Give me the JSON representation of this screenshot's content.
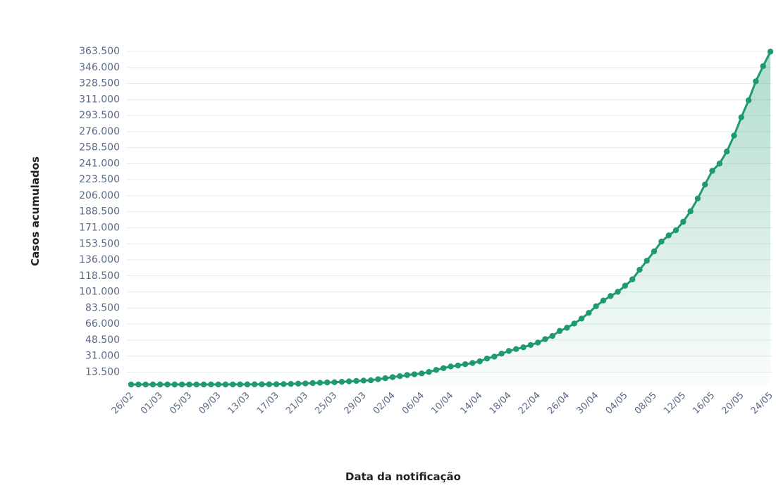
{
  "chart_data": {
    "type": "line",
    "x_label": "Data da notificação",
    "y_label": "Casos acumulados",
    "color": "#1f9a70",
    "grid": true,
    "categories": [
      "26/02",
      null,
      null,
      null,
      "01/03",
      null,
      null,
      null,
      "05/03",
      null,
      null,
      null,
      "09/03",
      null,
      null,
      null,
      "13/03",
      null,
      null,
      null,
      "17/03",
      null,
      null,
      null,
      "21/03",
      null,
      null,
      null,
      "25/03",
      null,
      null,
      null,
      "29/03",
      null,
      null,
      null,
      "02/04",
      null,
      null,
      null,
      "06/04",
      null,
      null,
      null,
      "10/04",
      null,
      null,
      null,
      "14/04",
      null,
      null,
      null,
      "18/04",
      null,
      null,
      null,
      "22/04",
      null,
      null,
      null,
      "26/04",
      null,
      null,
      null,
      "30/04",
      null,
      null,
      null,
      "04/05",
      null,
      null,
      null,
      "08/05",
      null,
      null,
      null,
      "12/05",
      null,
      null,
      null,
      "16/05",
      null,
      null,
      null,
      "20/05",
      null,
      null,
      null,
      "24/05"
    ],
    "values": [
      1,
      1,
      1,
      2,
      2,
      2,
      2,
      3,
      8,
      13,
      19,
      25,
      25,
      34,
      52,
      77,
      98,
      121,
      200,
      234,
      291,
      428,
      621,
      904,
      1128,
      1546,
      1891,
      2201,
      2433,
      2915,
      3417,
      3904,
      4256,
      4579,
      5717,
      6836,
      8044,
      9056,
      10278,
      11130,
      12056,
      13717,
      15927,
      17857,
      19638,
      20727,
      22169,
      23430,
      25262,
      28320,
      30425,
      33682,
      36599,
      38654,
      40581,
      43079,
      45757,
      49492,
      52995,
      58509,
      61888,
      66501,
      71886,
      78162,
      85380,
      91589,
      96559,
      101147,
      107780,
      114715,
      125218,
      135106,
      145328,
      155939,
      162699,
      168331,
      177589,
      188974,
      202918,
      218223,
      233142,
      241080,
      254220,
      271628,
      291579,
      310087,
      330890,
      347398,
      363211
    ],
    "ylim": [
      0,
      363500
    ],
    "yticks": [
      {
        "value": 13500,
        "label": "13.500"
      },
      {
        "value": 31000,
        "label": "31.000"
      },
      {
        "value": 48500,
        "label": "48.500"
      },
      {
        "value": 66000,
        "label": "66.000"
      },
      {
        "value": 83500,
        "label": "83.500"
      },
      {
        "value": 101000,
        "label": "101.000"
      },
      {
        "value": 118500,
        "label": "118.500"
      },
      {
        "value": 136000,
        "label": "136.000"
      },
      {
        "value": 153500,
        "label": "153.500"
      },
      {
        "value": 171000,
        "label": "171.000"
      },
      {
        "value": 188500,
        "label": "188.500"
      },
      {
        "value": 206000,
        "label": "206.000"
      },
      {
        "value": 223500,
        "label": "223.500"
      },
      {
        "value": 241000,
        "label": "241.000"
      },
      {
        "value": 258500,
        "label": "258.500"
      },
      {
        "value": 276000,
        "label": "276.000"
      },
      {
        "value": 293500,
        "label": "293.500"
      },
      {
        "value": 311000,
        "label": "311.000"
      },
      {
        "value": 328500,
        "label": "328.500"
      },
      {
        "value": 346000,
        "label": "346.000"
      },
      {
        "value": 363500,
        "label": "363.500"
      }
    ]
  }
}
